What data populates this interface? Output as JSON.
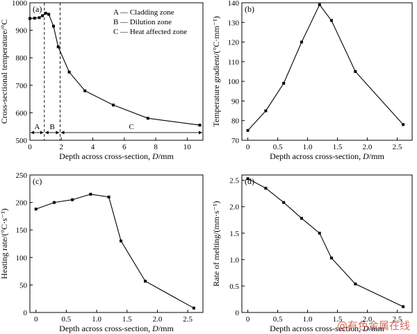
{
  "chart_data": [
    {
      "type": "line",
      "panel": "(a)",
      "x": [
        0,
        0.3,
        0.6,
        0.8,
        1.0,
        1.2,
        1.5,
        1.8,
        2.5,
        3.5,
        5.3,
        7.5,
        10.8
      ],
      "y": [
        943,
        944,
        946,
        953,
        962,
        958,
        915,
        840,
        748,
        680,
        628,
        580,
        555
      ],
      "xlim": [
        0,
        11
      ],
      "ylim": [
        500,
        1000
      ],
      "xticks": [
        0,
        2,
        4,
        6,
        8,
        10
      ],
      "yticks": [
        500,
        600,
        700,
        800,
        900,
        1000
      ],
      "xlabel_prefix": "Depth across cross-section,",
      "xlabel_var": "D",
      "xlabel_suffix": "/mm",
      "ylabel": "Cross-sectional temperature/°C",
      "dashed_x": [
        0.92,
        1.92
      ],
      "zone_labels": [
        "A",
        "B",
        "C"
      ],
      "legend": [
        "A — Cladding zone",
        "B — Dilution zone",
        "C — Heat affected zone"
      ]
    },
    {
      "type": "line",
      "panel": "(b)",
      "x": [
        0,
        0.3,
        0.6,
        0.9,
        1.2,
        1.4,
        1.8,
        2.6
      ],
      "y": [
        75,
        85,
        99,
        120,
        139,
        131,
        105,
        78
      ],
      "xlim": [
        -0.1,
        2.75
      ],
      "ylim": [
        70,
        140
      ],
      "xticks": [
        0,
        0.5,
        1.0,
        1.5,
        2.0,
        2.5
      ],
      "xticklabels": [
        "0",
        "0.5",
        "1.0",
        "1.5",
        "2.0",
        "2.5"
      ],
      "yticks": [
        70,
        80,
        90,
        100,
        110,
        120,
        130,
        140
      ],
      "xlabel_prefix": "Depth across cross-section,",
      "xlabel_var": "D",
      "xlabel_suffix": "/mm",
      "ylabel": "Temperature gradient/(°C·mm⁻¹)"
    },
    {
      "type": "line",
      "panel": "(c)",
      "x": [
        0,
        0.3,
        0.6,
        0.9,
        1.2,
        1.4,
        1.8,
        2.6
      ],
      "y": [
        188,
        200,
        205,
        215,
        210,
        130,
        57,
        8
      ],
      "xlim": [
        -0.1,
        2.75
      ],
      "ylim": [
        0,
        250
      ],
      "xticks": [
        0,
        0.5,
        1.0,
        1.5,
        2.0,
        2.5
      ],
      "xticklabels": [
        "0",
        "0.5",
        "1.0",
        "1.5",
        "2.0",
        "2.5"
      ],
      "yticks": [
        0,
        50,
        100,
        150,
        200,
        250
      ],
      "xlabel_prefix": "Depth across cross-section,",
      "xlabel_var": "D",
      "xlabel_suffix": "/mm",
      "ylabel": "Heating rate/(°C·s⁻¹)"
    },
    {
      "type": "line",
      "panel": "(d)",
      "x": [
        0,
        0.3,
        0.6,
        0.9,
        1.2,
        1.4,
        1.8,
        2.6
      ],
      "y": [
        2.53,
        2.35,
        2.08,
        1.78,
        1.5,
        1.03,
        0.54,
        0.11
      ],
      "xlim": [
        -0.1,
        2.75
      ],
      "ylim": [
        0,
        2.6
      ],
      "xticks": [
        0,
        0.5,
        1.0,
        1.5,
        2.0,
        2.5
      ],
      "xticklabels": [
        "0",
        "0.5",
        "1.0",
        "1.5",
        "2.0",
        "2.5"
      ],
      "yticks": [
        0,
        0.5,
        1.0,
        1.5,
        2.0,
        2.5
      ],
      "yticklabels": [
        "0",
        "0.5",
        "1.0",
        "1.5",
        "2.0",
        "2.5"
      ],
      "xlabel_prefix": "Depth across cross-section,",
      "xlabel_var": "D",
      "xlabel_suffix": "/mm",
      "ylabel": "Rate of melting/(mm·s⁻¹)"
    }
  ],
  "watermark": "@有色金属在线"
}
